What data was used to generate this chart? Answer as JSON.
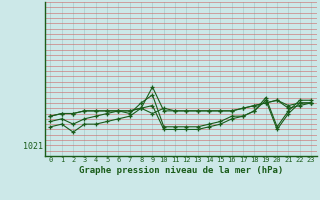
{
  "xlabel": "Graphe pression niveau de la mer (hPa)",
  "bg_color": "#cce8e8",
  "grid_color_v": "#aacccc",
  "grid_color_h": "#cc6666",
  "line_color": "#1a5c1a",
  "x_ticks": [
    0,
    1,
    2,
    3,
    4,
    5,
    6,
    7,
    8,
    9,
    10,
    11,
    12,
    13,
    14,
    15,
    16,
    17,
    18,
    19,
    20,
    21,
    22,
    23
  ],
  "y_label_val": 1021,
  "series": [
    [
      1026.5,
      1027.0,
      1027.0,
      1027.5,
      1027.5,
      1027.5,
      1027.5,
      1027.5,
      1028.0,
      1027.0,
      1028.0,
      1027.5,
      1027.5,
      1027.5,
      1027.5,
      1027.5,
      1027.5,
      1028.0,
      1028.5,
      1029.0,
      1029.5,
      1028.5,
      1029.0,
      1029.0
    ],
    [
      1026.5,
      1027.0,
      1027.0,
      1027.5,
      1027.5,
      1027.5,
      1027.5,
      1027.5,
      1028.0,
      1032.0,
      1027.5,
      1027.5,
      1027.5,
      1027.5,
      1027.5,
      1027.5,
      1027.5,
      1028.0,
      1028.5,
      1029.0,
      1029.5,
      1028.0,
      1028.5,
      1029.0
    ],
    [
      1025.5,
      1026.0,
      1025.0,
      1026.0,
      1026.5,
      1027.0,
      1027.5,
      1027.0,
      1029.0,
      1030.5,
      1024.5,
      1024.5,
      1024.5,
      1024.5,
      1025.0,
      1025.5,
      1026.5,
      1026.5,
      1027.5,
      1030.0,
      1024.5,
      1027.5,
      1029.5,
      1029.5
    ],
    [
      1024.5,
      1025.0,
      1023.5,
      1025.0,
      1025.0,
      1025.5,
      1026.0,
      1026.5,
      1028.0,
      1028.5,
      1024.0,
      1024.0,
      1024.0,
      1024.0,
      1024.5,
      1025.0,
      1026.0,
      1026.5,
      1027.5,
      1029.5,
      1024.0,
      1027.0,
      1029.0,
      1029.0
    ]
  ],
  "ylim_min": 1019,
  "ylim_max": 1048,
  "figsize": [
    3.2,
    2.0
  ],
  "dpi": 100
}
